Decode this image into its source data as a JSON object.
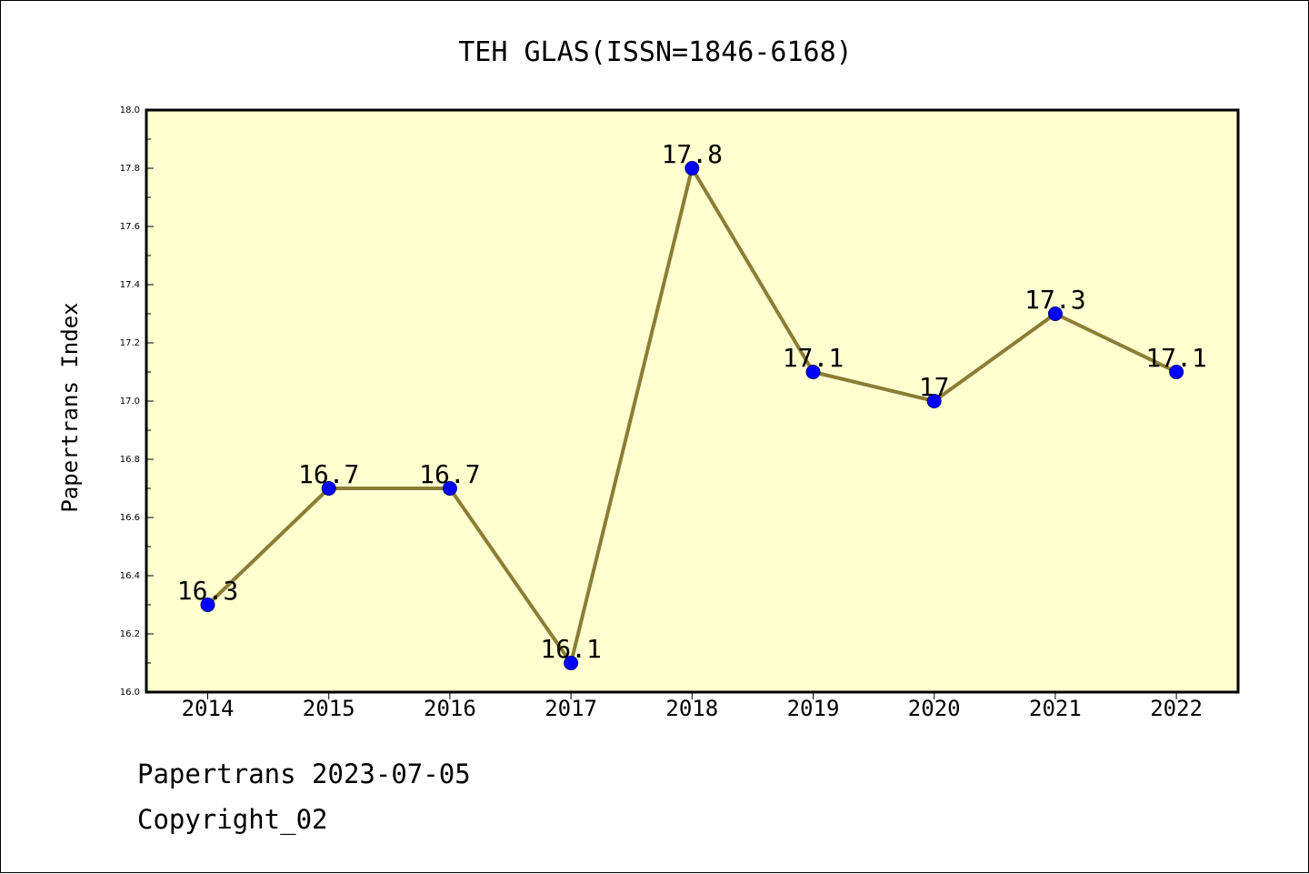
{
  "chart_data": {
    "type": "line",
    "title": "TEH GLAS(ISSN=1846-6168)",
    "xlabel": "",
    "ylabel": "Papertrans Index",
    "categories": [
      "2014",
      "2015",
      "2016",
      "2017",
      "2018",
      "2019",
      "2020",
      "2021",
      "2022"
    ],
    "values": [
      16.3,
      16.7,
      16.7,
      16.1,
      17.8,
      17.1,
      17.0,
      17.3,
      17.1
    ],
    "data_labels": [
      "16.3",
      "16.7",
      "16.7",
      "16.1",
      "17.8",
      "17.1",
      "17",
      "17.3",
      "17.1"
    ],
    "ylim": [
      16.0,
      18.0
    ],
    "yticks": [
      "16.0",
      "16.2",
      "16.4",
      "16.6",
      "16.8",
      "17.0",
      "17.2",
      "17.4",
      "17.6",
      "17.8",
      "18.0"
    ],
    "grid": false,
    "colors": {
      "plot_background": "#ffffd0",
      "line": "#8b7d35",
      "marker": "#0000ff"
    }
  },
  "footer": {
    "line1": "Papertrans 2023-07-05",
    "line2": "Copyright_02"
  }
}
